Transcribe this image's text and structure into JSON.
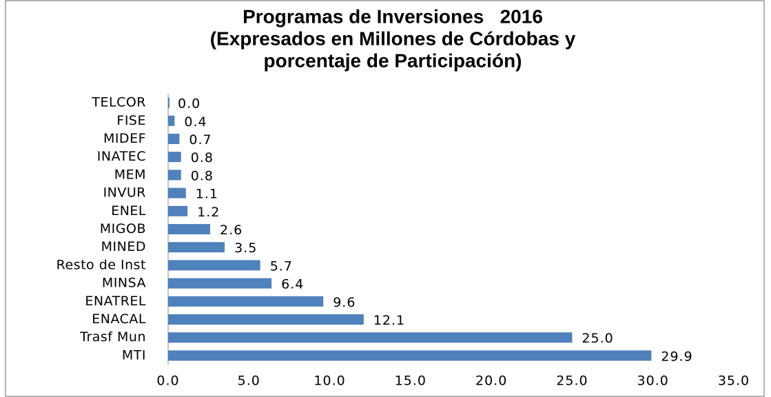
{
  "chart_data": {
    "type": "bar",
    "orientation": "horizontal",
    "title": [
      "Programas de Inversiones   2016",
      "(Expresados en Millones de Córdobas y",
      "porcentaje de Participación)"
    ],
    "categories": [
      "TELCOR",
      "FISE",
      "MIDEF",
      "INATEC",
      "MEM",
      "INVUR",
      "ENEL",
      "MIGOB",
      "MINED",
      "Resto de Inst",
      "MINSA",
      "ENATREL",
      "ENACAL",
      "Trasf Mun",
      "MTI"
    ],
    "values": [
      0,
      0.4,
      0.7,
      0.8,
      0.8,
      1.1,
      1.2,
      2.6,
      3.5,
      5.7,
      6.4,
      9.6,
      12.1,
      25,
      29.9
    ],
    "value_labels": [
      "0.0",
      "0.4",
      "0.7",
      "0.8",
      "0.8",
      "1.1",
      "1.2",
      "2.6",
      "3.5",
      "5.7",
      "6.4",
      "9.6",
      "12.1",
      "25.0",
      "29.9"
    ],
    "color": "#4f81bd",
    "xlim": [
      0,
      35
    ],
    "xticks": [
      {
        "value": 0,
        "label": "0.0"
      },
      {
        "value": 5,
        "label": "5.0"
      },
      {
        "value": 10,
        "label": "10.0"
      },
      {
        "value": 15,
        "label": "15.0"
      },
      {
        "value": 20,
        "label": "20.0"
      },
      {
        "value": 25,
        "label": "25.0"
      },
      {
        "value": 30,
        "label": "30.0"
      },
      {
        "value": 35,
        "label": "35.0"
      }
    ],
    "grid": false
  }
}
